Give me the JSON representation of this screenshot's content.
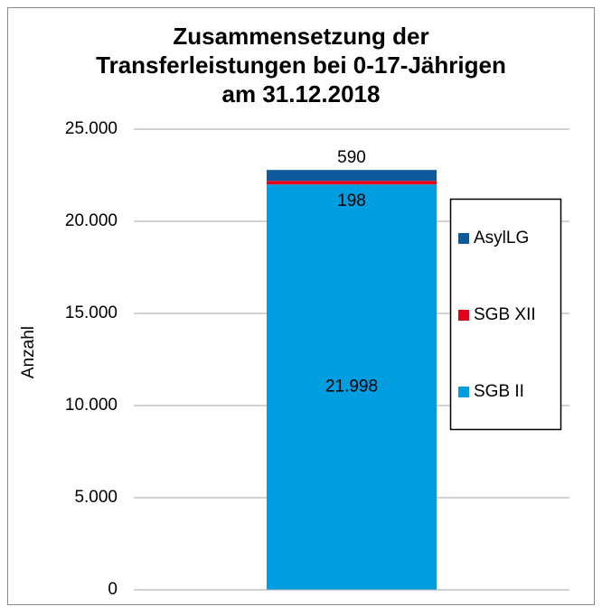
{
  "chart_data": {
    "type": "stacked_bar",
    "title": [
      "Zusammensetzung der",
      "Transferleistungen bei  0-17-Jährigen",
      "am 31.12.2018"
    ],
    "y_label": "Anzahl",
    "categories": [
      null
    ],
    "series": [
      {
        "name": "SGB II",
        "color": "#009ee0",
        "values": [
          21998
        ],
        "value_labels": [
          "21.998"
        ]
      },
      {
        "name": "SGB XII",
        "color": "#e2001a",
        "values": [
          198
        ],
        "value_labels": [
          "198"
        ]
      },
      {
        "name": "AsylLG",
        "color": "#0f5a9c",
        "values": [
          590
        ],
        "value_labels": [
          "590"
        ]
      }
    ],
    "ylim": [
      0,
      25000
    ],
    "yticks": [
      0,
      {
        "value": 5000,
        "label": "5.000"
      },
      {
        "value": 10000,
        "label": "10.000"
      },
      {
        "value": 15000,
        "label": "15.000"
      },
      {
        "value": 20000,
        "label": "20.000"
      },
      {
        "value": 25000,
        "label": "25.000"
      }
    ],
    "grid": true,
    "legend": "right"
  }
}
